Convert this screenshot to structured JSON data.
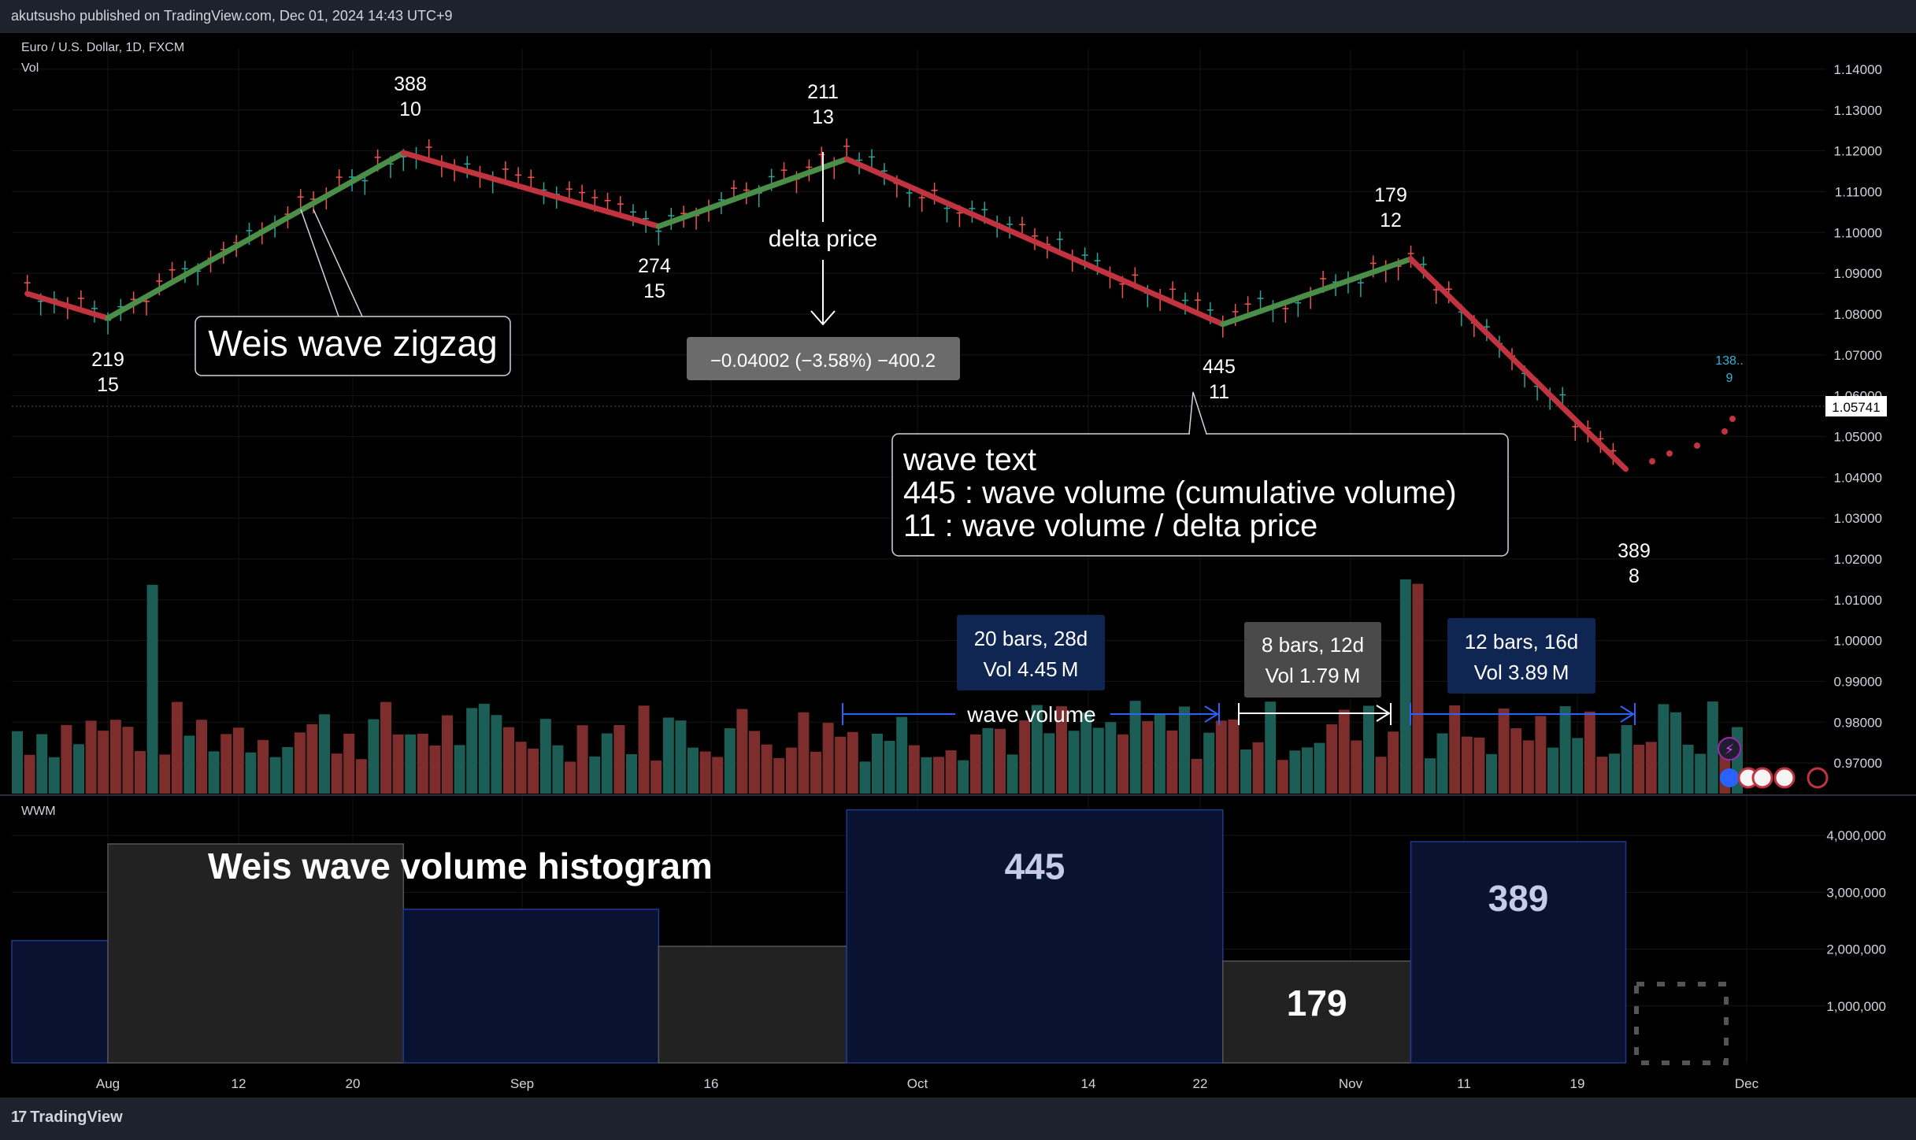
{
  "header": {
    "published": "akutsusho published on TradingView.com, Dec 01, 2024 14:43 UTC+9",
    "symbol": "Euro / U.S. Dollar, 1D, FXCM",
    "vol_label": "Vol",
    "wwm_label": "WWM",
    "brand": "TradingView"
  },
  "colors": {
    "up_wave": "#4a8e48",
    "down_wave": "#c23340",
    "vol_up": "#1c5e55",
    "vol_down": "#7c2d2c",
    "hist_up_fill": "#0a1232",
    "hist_down_fill": "#222222",
    "accent_blue": "#2962ff",
    "text": "#d1d4dc"
  },
  "price_axis": {
    "ticks": [
      "1.14000",
      "1.13000",
      "1.12000",
      "1.11000",
      "1.10000",
      "1.09000",
      "1.08000",
      "1.07000",
      "1.06000",
      "1.05000",
      "1.04000",
      "1.03000",
      "1.02000",
      "1.01000",
      "1.00000",
      "0.99000",
      "0.98000",
      "0.97000"
    ],
    "last_price": "1.05741"
  },
  "volume_axis": {
    "ticks": [
      "4,000,000",
      "3,000,000",
      "2,000,000",
      "1,000,000"
    ]
  },
  "time_axis": {
    "labels": [
      "Aug",
      "12",
      "20",
      "Sep",
      "16",
      "Oct",
      "14",
      "22",
      "Nov",
      "11",
      "19",
      "Dec"
    ]
  },
  "chart_data": [
    {
      "type": "line",
      "title": "",
      "series_name": "Weis wave zigzag",
      "points": [
        {
          "date": "2024-07-26",
          "price": 1.085
        },
        {
          "date": "2024-08-01",
          "price": 1.079
        },
        {
          "date": "2024-08-23",
          "price": 1.1195
        },
        {
          "date": "2024-09-11",
          "price": 1.1015
        },
        {
          "date": "2024-09-25",
          "price": 1.118
        },
        {
          "date": "2024-10-23",
          "price": 1.0775
        },
        {
          "date": "2024-11-06",
          "price": 1.0935
        },
        {
          "date": "2024-11-22",
          "price": 1.042
        }
      ],
      "wave_labels": [
        {
          "volume": "219",
          "ratio": "15"
        },
        {
          "volume": "388",
          "ratio": "10"
        },
        {
          "volume": "274",
          "ratio": "15"
        },
        {
          "volume": "211",
          "ratio": "13"
        },
        {
          "volume": "445",
          "ratio": "11"
        },
        {
          "volume": "179",
          "ratio": "12"
        },
        {
          "volume": "389",
          "ratio": "8"
        },
        {
          "volume": "138..",
          "ratio": "9"
        }
      ],
      "ylim": [
        0.965,
        1.145
      ]
    },
    {
      "type": "bar",
      "title": "Weis wave volume histogram",
      "bars": [
        {
          "label": "",
          "value": 2150000,
          "direction": "down"
        },
        {
          "label": "",
          "value": 3850000,
          "direction": "up"
        },
        {
          "label": "",
          "value": 2700000,
          "direction": "down"
        },
        {
          "label": "",
          "value": 2050000,
          "direction": "up"
        },
        {
          "label": "445",
          "value": 4450000,
          "direction": "down"
        },
        {
          "label": "179",
          "value": 1790000,
          "direction": "up"
        },
        {
          "label": "389",
          "value": 3890000,
          "direction": "down"
        }
      ],
      "ylim": [
        0,
        4500000
      ]
    }
  ],
  "annotations": {
    "zigzag_callout": "Weis wave zigzag",
    "delta_price_label": "delta price",
    "delta_price_box": "−0.04002 (−3.58%) −400.2",
    "wave_text_title": "wave text",
    "wave_text_line1": "445 : wave volume (cumulative volume)",
    "wave_text_line2": "11 : wave volume / delta price",
    "wave_volume_label": "wave volume",
    "range1_line1": "20 bars, 28d",
    "range1_line2": "Vol 4.45 M",
    "range2_line1": "8 bars, 12d",
    "range2_line2": "Vol 1.79 M",
    "range3_line1": "12 bars, 16d",
    "range3_line2": "Vol 3.89 M"
  }
}
